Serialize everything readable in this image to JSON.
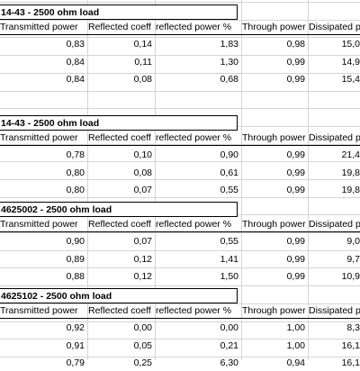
{
  "sections": [
    {
      "title": "14-43 -  2500 ohm load",
      "headers": [
        "Transmitted power",
        "Reflected coeff",
        "reflected power %",
        "Through power",
        "Dissipated p"
      ],
      "rows": [
        [
          "0,83",
          "0,14",
          "1,83",
          "0,98",
          "15,0"
        ],
        [
          "0,84",
          "0,11",
          "1,30",
          "0,99",
          "14,9"
        ],
        [
          "0,84",
          "0,08",
          "0,68",
          "0,99",
          "15,4"
        ]
      ]
    },
    {
      "title": "14-43 -  2500 ohm load",
      "headers": [
        "Transmitted power",
        "Reflected coeff",
        "reflected power %",
        "Through power",
        "Dissipated p"
      ],
      "rows": [
        [
          "0,78",
          "0,10",
          "0,90",
          "0,99",
          "21,4"
        ],
        [
          "0,80",
          "0,08",
          "0,61",
          "0,99",
          "19,8"
        ],
        [
          "0,80",
          "0,07",
          "0,55",
          "0,99",
          "19,8"
        ]
      ]
    },
    {
      "title": "4625002 -  2500 ohm load",
      "headers": [
        "Transmitted power",
        "Reflected coeff",
        "reflected power %",
        "Through power",
        "Dissipated p"
      ],
      "rows": [
        [
          "0,90",
          "0,07",
          "0,55",
          "0,99",
          "9,0"
        ],
        [
          "0,89",
          "0,12",
          "1,41",
          "0,99",
          "9,7"
        ],
        [
          "0,88",
          "0,12",
          "1,50",
          "0,99",
          "10,9"
        ]
      ]
    },
    {
      "title": "4625102 -  2500 ohm load",
      "headers": [
        "Transmitted power",
        "Reflected coeff",
        "reflected power %",
        "Through power",
        "Dissipated p"
      ],
      "rows": [
        [
          "0,92",
          "0,00",
          "0,00",
          "1,00",
          "8,3"
        ],
        [
          "0,91",
          "0,05",
          "0,21",
          "1,00",
          "16,1"
        ],
        [
          "0,79",
          "0,25",
          "6,30",
          "0,94",
          "16,1"
        ]
      ]
    }
  ]
}
